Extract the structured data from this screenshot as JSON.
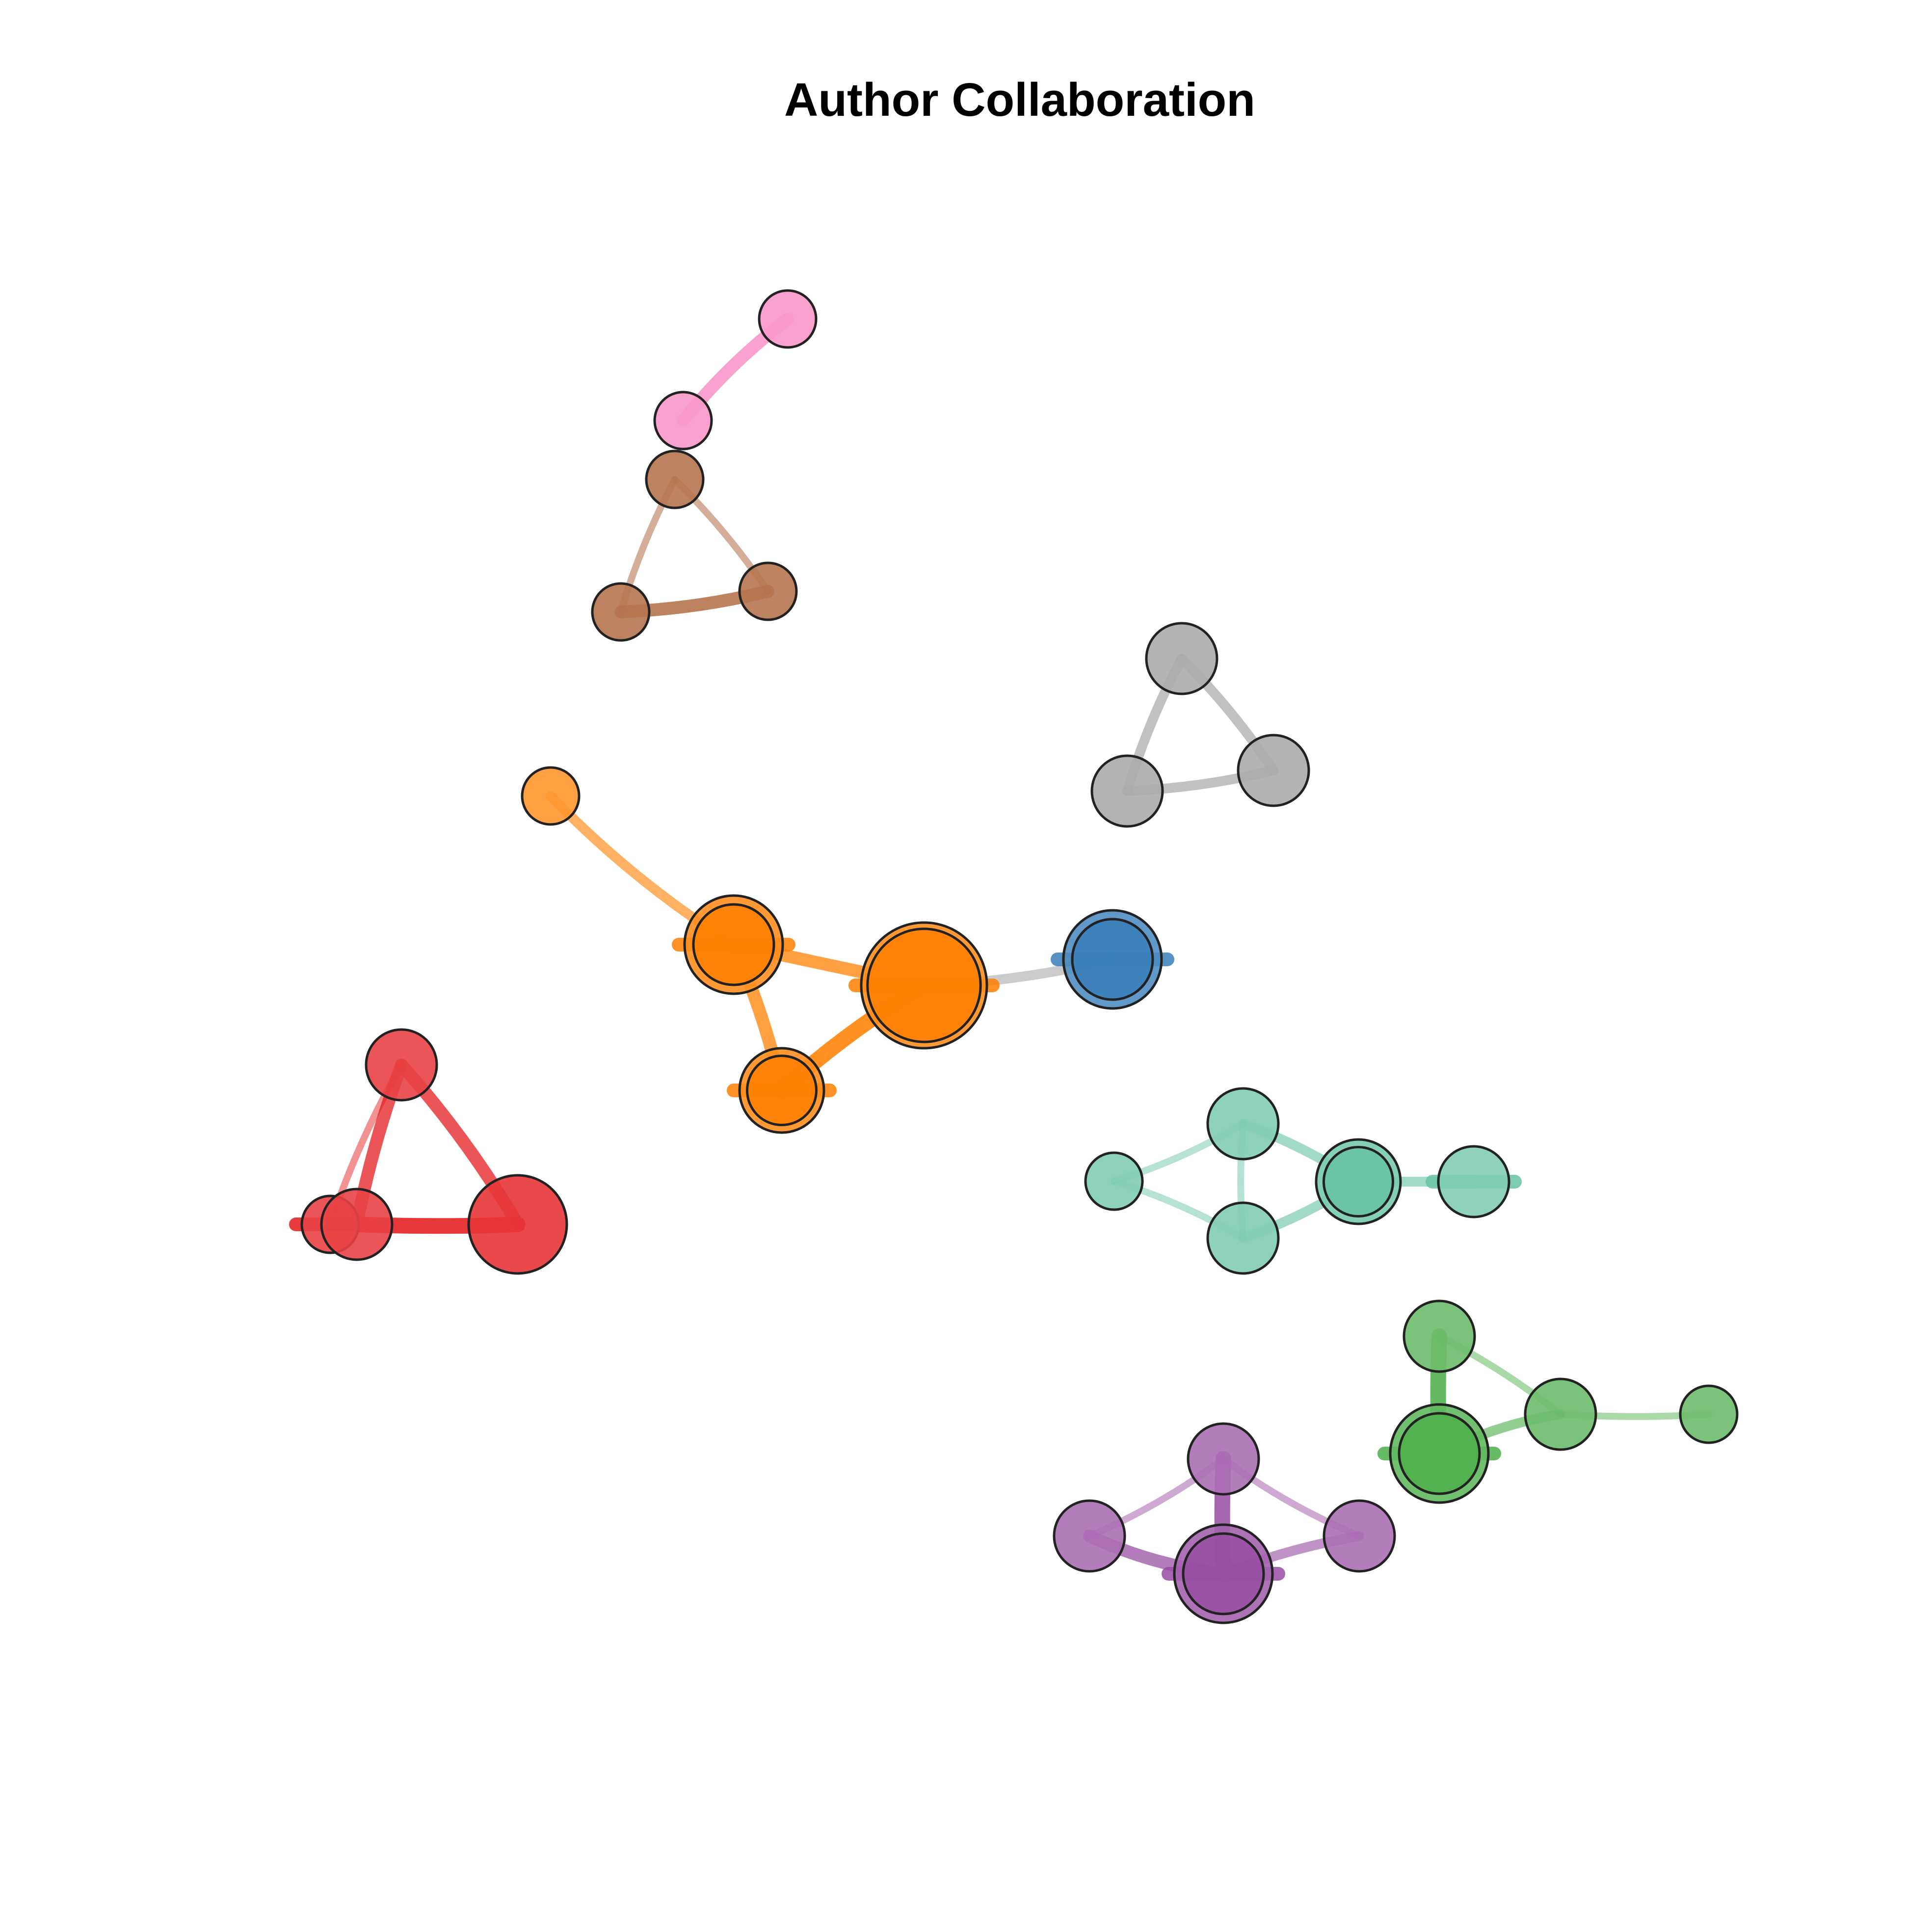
{
  "title": "Author Collaboration",
  "groups": [
    {
      "name": "orange",
      "color": "#ff7f00"
    },
    {
      "name": "blue",
      "color": "#377eb8"
    },
    {
      "name": "red",
      "color": "#e41a1c"
    },
    {
      "name": "teal",
      "color": "#66c2a5"
    },
    {
      "name": "green",
      "color": "#4daf4a"
    },
    {
      "name": "purple",
      "color": "#984ea3"
    },
    {
      "name": "pink",
      "color": "#f781bf"
    },
    {
      "name": "brown",
      "color": "#a65628"
    },
    {
      "name": "gray",
      "color": "#999999"
    }
  ],
  "nodes": [
    {
      "id": "p1",
      "group": "pink",
      "weight": 1
    },
    {
      "id": "p2",
      "group": "pink",
      "weight": 1
    },
    {
      "id": "b1",
      "group": "brown",
      "weight": 1
    },
    {
      "id": "b2",
      "group": "brown",
      "weight": 1
    },
    {
      "id": "b3",
      "group": "brown",
      "weight": 1
    },
    {
      "id": "g1",
      "group": "gray",
      "weight": 2
    },
    {
      "id": "g2",
      "group": "gray",
      "weight": 2
    },
    {
      "id": "g3",
      "group": "gray",
      "weight": 2
    },
    {
      "id": "o1",
      "group": "orange",
      "weight": 1
    },
    {
      "id": "o2",
      "group": "orange",
      "weight": 4
    },
    {
      "id": "o3",
      "group": "orange",
      "weight": 6
    },
    {
      "id": "o4",
      "group": "orange",
      "weight": 3
    },
    {
      "id": "bl1",
      "group": "blue",
      "weight": 4
    },
    {
      "id": "r1",
      "group": "red",
      "weight": 2
    },
    {
      "id": "r2",
      "group": "red",
      "weight": 1
    },
    {
      "id": "r3",
      "group": "red",
      "weight": 2
    },
    {
      "id": "r4",
      "group": "red",
      "weight": 4
    },
    {
      "id": "t1",
      "group": "teal",
      "weight": 1
    },
    {
      "id": "t2",
      "group": "teal",
      "weight": 2
    },
    {
      "id": "t3",
      "group": "teal",
      "weight": 2
    },
    {
      "id": "t4",
      "group": "teal",
      "weight": 3
    },
    {
      "id": "t5",
      "group": "teal",
      "weight": 2
    },
    {
      "id": "gr1",
      "group": "green",
      "weight": 2
    },
    {
      "id": "gr2",
      "group": "green",
      "weight": 2
    },
    {
      "id": "gr3",
      "group": "green",
      "weight": 1
    },
    {
      "id": "gr4",
      "group": "green",
      "weight": 4
    },
    {
      "id": "pu1",
      "group": "purple",
      "weight": 2
    },
    {
      "id": "pu2",
      "group": "purple",
      "weight": 2
    },
    {
      "id": "pu3",
      "group": "purple",
      "weight": 2
    },
    {
      "id": "pu4",
      "group": "purple",
      "weight": 4
    }
  ],
  "edges": [
    {
      "source": "p1",
      "target": "p2",
      "weight": 3
    },
    {
      "source": "b1",
      "target": "b2",
      "weight": 1
    },
    {
      "source": "b1",
      "target": "b3",
      "weight": 1
    },
    {
      "source": "b2",
      "target": "b3",
      "weight": 3
    },
    {
      "source": "g1",
      "target": "g2",
      "weight": 2
    },
    {
      "source": "g1",
      "target": "g3",
      "weight": 2
    },
    {
      "source": "g2",
      "target": "g3",
      "weight": 2
    },
    {
      "source": "o1",
      "target": "o2",
      "weight": 2
    },
    {
      "source": "o2",
      "target": "o3",
      "weight": 3
    },
    {
      "source": "o2",
      "target": "o4",
      "weight": 3
    },
    {
      "source": "o3",
      "target": "o4",
      "weight": 4
    },
    {
      "source": "o3",
      "target": "bl1",
      "weight": 2
    },
    {
      "source": "r1",
      "target": "r2",
      "weight": 1
    },
    {
      "source": "r1",
      "target": "r3",
      "weight": 3
    },
    {
      "source": "r1",
      "target": "r4",
      "weight": 3
    },
    {
      "source": "r3",
      "target": "r4",
      "weight": 4
    },
    {
      "source": "t1",
      "target": "t2",
      "weight": 1
    },
    {
      "source": "t1",
      "target": "t3",
      "weight": 1
    },
    {
      "source": "t2",
      "target": "t3",
      "weight": 1
    },
    {
      "source": "t2",
      "target": "t4",
      "weight": 2
    },
    {
      "source": "t3",
      "target": "t4",
      "weight": 2
    },
    {
      "source": "t4",
      "target": "t5",
      "weight": 2
    },
    {
      "source": "gr1",
      "target": "gr4",
      "weight": 4
    },
    {
      "source": "gr1",
      "target": "gr2",
      "weight": 1
    },
    {
      "source": "gr2",
      "target": "gr3",
      "weight": 1
    },
    {
      "source": "gr2",
      "target": "gr4",
      "weight": 2
    },
    {
      "source": "pu1",
      "target": "pu4",
      "weight": 4
    },
    {
      "source": "pu1",
      "target": "pu2",
      "weight": 1
    },
    {
      "source": "pu1",
      "target": "pu3",
      "weight": 1
    },
    {
      "source": "pu2",
      "target": "pu4",
      "weight": 3
    },
    {
      "source": "pu3",
      "target": "pu4",
      "weight": 2
    }
  ]
}
